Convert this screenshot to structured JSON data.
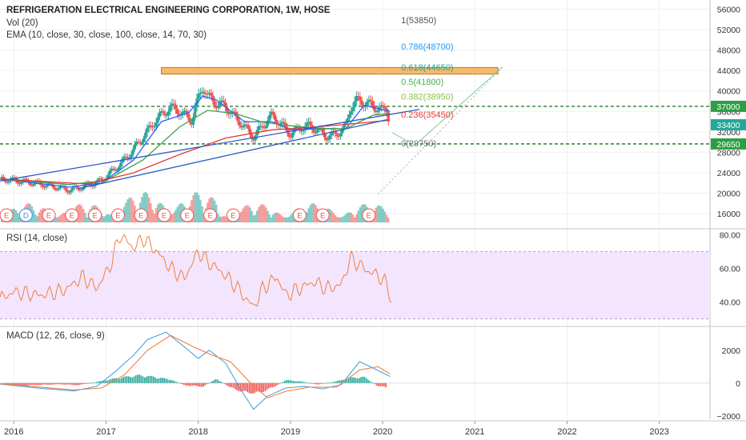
{
  "header": {
    "title": "REFRIGERATION ELECTRICAL ENGINEERING CORPORATION, 1W, HOSE",
    "vol": "Vol (20)",
    "ema": "EMA (10, close, 30, close, 100, close, 14, 70, 30)"
  },
  "rsi_label": "RSI (14, close)",
  "macd_label": "MACD (12, 26, close, 9)",
  "colors": {
    "up": "#26a69a",
    "down": "#ef5350",
    "ema10": "#2962ff",
    "ema30": "#43a047",
    "ema100": "#e53935",
    "trend": "#2e5cc4",
    "level": "#2e7d32",
    "rsi": "#f08040",
    "rsi_band": "#f3e5fd",
    "macd": "#4aa3df",
    "signal": "#f08040",
    "fib_box": "#f5b96a"
  },
  "chart_data": [
    {
      "type": "candlestick",
      "title": "REFRIGERATION ELECTRICAL ENGINEERING CORPORATION, 1W, HOSE",
      "x_ticks": [
        "2016",
        "2017",
        "2018",
        "2019",
        "2020",
        "2021",
        "2022",
        "2023"
      ],
      "y_ticks": [
        16000,
        20000,
        24000,
        28000,
        32000,
        36000,
        40000,
        44000,
        48000,
        52000,
        56000
      ],
      "ylim": [
        13200,
        57800
      ],
      "price_tags": [
        {
          "value": 37000,
          "label": "37000",
          "color": "#2e9e46"
        },
        {
          "value": 33400,
          "label": "33400",
          "color": "#26a69a"
        },
        {
          "value": 29650,
          "label": "29650",
          "color": "#2e9e46"
        }
      ],
      "horizontal_levels": [
        37000,
        29650
      ],
      "resistance_zone": {
        "from_date": 2017.6,
        "to_date": 2021.25,
        "low": 43300,
        "high": 44600
      },
      "price_path": [
        [
          2015.85,
          22800
        ],
        [
          2016.1,
          22300
        ],
        [
          2016.35,
          21600
        ],
        [
          2016.6,
          20600
        ],
        [
          2016.75,
          21200
        ],
        [
          2016.95,
          22500
        ],
        [
          2017.1,
          24800
        ],
        [
          2017.25,
          27500
        ],
        [
          2017.4,
          31000
        ],
        [
          2017.55,
          34500
        ],
        [
          2017.7,
          36800
        ],
        [
          2017.8,
          36000
        ],
        [
          2017.93,
          34200
        ],
        [
          2018.0,
          38500
        ],
        [
          2018.05,
          41000
        ],
        [
          2018.1,
          39000
        ],
        [
          2018.2,
          37500
        ],
        [
          2018.3,
          37000
        ],
        [
          2018.4,
          34800
        ],
        [
          2018.5,
          33000
        ],
        [
          2018.6,
          31000
        ],
        [
          2018.7,
          33200
        ],
        [
          2018.8,
          35200
        ],
        [
          2018.9,
          33500
        ],
        [
          2019.0,
          31500
        ],
        [
          2019.1,
          32800
        ],
        [
          2019.2,
          33200
        ],
        [
          2019.3,
          32200
        ],
        [
          2019.4,
          31000
        ],
        [
          2019.5,
          31600
        ],
        [
          2019.6,
          33000
        ],
        [
          2019.65,
          36800
        ],
        [
          2019.72,
          38200
        ],
        [
          2019.8,
          37800
        ],
        [
          2019.9,
          37000
        ],
        [
          2020.0,
          36200
        ],
        [
          2020.04,
          36800
        ],
        [
          2020.08,
          33400
        ]
      ],
      "ema": [
        {
          "name": "EMA 10",
          "points": [
            [
              2015.85,
              22800
            ],
            [
              2016.6,
              21200
            ],
            [
              2016.95,
              22000
            ],
            [
              2017.3,
              26500
            ],
            [
              2017.6,
              34000
            ],
            [
              2017.9,
              35800
            ],
            [
              2018.05,
              39000
            ],
            [
              2018.2,
              38200
            ],
            [
              2018.5,
              34000
            ],
            [
              2018.8,
              34000
            ],
            [
              2019.0,
              32400
            ],
            [
              2019.3,
              32600
            ],
            [
              2019.6,
              32600
            ],
            [
              2019.8,
              37200
            ],
            [
              2020.08,
              36000
            ]
          ]
        },
        {
          "name": "EMA 30",
          "points": [
            [
              2015.85,
              22800
            ],
            [
              2016.6,
              21700
            ],
            [
              2017.0,
              22500
            ],
            [
              2017.4,
              26500
            ],
            [
              2017.8,
              33000
            ],
            [
              2018.1,
              36200
            ],
            [
              2018.4,
              35600
            ],
            [
              2018.7,
              33900
            ],
            [
              2019.0,
              33200
            ],
            [
              2019.3,
              32700
            ],
            [
              2019.6,
              32600
            ],
            [
              2019.9,
              35300
            ],
            [
              2020.08,
              35600
            ]
          ]
        },
        {
          "name": "EMA 100",
          "points": [
            [
              2015.85,
              22800
            ],
            [
              2016.8,
              21800
            ],
            [
              2017.3,
              24000
            ],
            [
              2017.8,
              27600
            ],
            [
              2018.3,
              30800
            ],
            [
              2018.8,
              32400
            ],
            [
              2019.3,
              33000
            ],
            [
              2019.8,
              33800
            ],
            [
              2020.08,
              34300
            ]
          ]
        }
      ],
      "trendlines": [
        {
          "from": [
            2015.85,
            22400
          ],
          "to": [
            2020.4,
            36400
          ]
        },
        {
          "from": [
            2016.7,
            20900
          ],
          "to": [
            2020.05,
            34400
          ]
        }
      ],
      "projection_arrow": {
        "from": [
          2020.1,
          31900
        ],
        "to": [
          2020.35,
          29400
        ],
        "then_to": [
          2021.3,
          44700
        ]
      },
      "fib_levels": [
        {
          "ratio": "1",
          "value": 53850,
          "label": "1(53850)",
          "color": "#555555"
        },
        {
          "ratio": "0.786",
          "value": 48700,
          "label": "0.786(48700)",
          "color": "#2196f3"
        },
        {
          "ratio": "0.618",
          "value": 44650,
          "label": "0.618(44650)",
          "color": "#26a69a"
        },
        {
          "ratio": "0.5",
          "value": 41800,
          "label": "0.5(41800)",
          "color": "#4caf50"
        },
        {
          "ratio": "0.382",
          "value": 38950,
          "label": "0.382(38950)",
          "color": "#8bc34a"
        },
        {
          "ratio": "0.236",
          "value": 35450,
          "label": "0.236(35450)",
          "color": "#e53935"
        },
        {
          "ratio": "0",
          "value": 29750,
          "label": "0(29750)",
          "color": "#777777"
        }
      ],
      "earnings_markers": [
        {
          "date": 2015.92,
          "label": "E",
          "color": "#ef5350"
        },
        {
          "date": 2016.13,
          "label": "D",
          "color": "#2196f3"
        },
        {
          "date": 2016.38,
          "label": "E",
          "color": "#ef5350"
        },
        {
          "date": 2016.63,
          "label": "E",
          "color": "#ef5350"
        },
        {
          "date": 2016.88,
          "label": "E",
          "color": "#ef5350"
        },
        {
          "date": 2017.13,
          "label": "E",
          "color": "#ef5350"
        },
        {
          "date": 2017.38,
          "label": "E",
          "color": "#ef5350"
        },
        {
          "date": 2017.63,
          "label": "E",
          "color": "#ef5350"
        },
        {
          "date": 2017.88,
          "label": "E",
          "color": "#ef5350"
        },
        {
          "date": 2018.13,
          "label": "E",
          "color": "#ef5350"
        },
        {
          "date": 2018.38,
          "label": "E",
          "color": "#ef5350"
        },
        {
          "date": 2019.1,
          "label": "E",
          "color": "#ef5350"
        },
        {
          "date": 2019.35,
          "label": "E",
          "color": "#ef5350"
        },
        {
          "date": 2019.85,
          "label": "E",
          "color": "#ef5350"
        }
      ]
    },
    {
      "type": "line",
      "title": "RSI (14, close)",
      "y_ticks": [
        40,
        60,
        80
      ],
      "tick_labels": [
        "40.00",
        "60.00",
        "80.00"
      ],
      "ylim": [
        26,
        83
      ],
      "band": [
        30,
        70
      ],
      "series": [
        {
          "name": "RSI",
          "points": [
            [
              2015.85,
              42
            ],
            [
              2016.0,
              46
            ],
            [
              2016.3,
              44
            ],
            [
              2016.55,
              47
            ],
            [
              2016.75,
              55
            ],
            [
              2016.9,
              48
            ],
            [
              2017.05,
              62
            ],
            [
              2017.15,
              80
            ],
            [
              2017.3,
              72
            ],
            [
              2017.4,
              78
            ],
            [
              2017.55,
              70
            ],
            [
              2017.7,
              60
            ],
            [
              2017.85,
              54
            ],
            [
              2018.0,
              70
            ],
            [
              2018.1,
              64
            ],
            [
              2018.25,
              58
            ],
            [
              2018.4,
              50
            ],
            [
              2018.5,
              43
            ],
            [
              2018.6,
              37
            ],
            [
              2018.7,
              48
            ],
            [
              2018.85,
              55
            ],
            [
              2018.95,
              44
            ],
            [
              2019.1,
              48
            ],
            [
              2019.25,
              52
            ],
            [
              2019.4,
              48
            ],
            [
              2019.55,
              50
            ],
            [
              2019.65,
              66
            ],
            [
              2019.75,
              62
            ],
            [
              2019.85,
              58
            ],
            [
              2019.95,
              56
            ],
            [
              2020.05,
              50
            ],
            [
              2020.1,
              40
            ]
          ]
        }
      ]
    },
    {
      "type": "line",
      "title": "MACD (12, 26, close, 9)",
      "y_ticks": [
        -2000,
        0,
        2000
      ],
      "tick_labels": [
        "−2000",
        "0",
        "2000"
      ],
      "ylim": [
        -2200,
        3400
      ],
      "series": [
        {
          "name": "MACD",
          "points": [
            [
              2015.85,
              -60
            ],
            [
              2016.3,
              -320
            ],
            [
              2016.65,
              -480
            ],
            [
              2016.9,
              -200
            ],
            [
              2017.1,
              700
            ],
            [
              2017.3,
              1700
            ],
            [
              2017.45,
              2650
            ],
            [
              2017.65,
              3100
            ],
            [
              2017.85,
              2200
            ],
            [
              2018.0,
              1500
            ],
            [
              2018.12,
              2000
            ],
            [
              2018.3,
              1200
            ],
            [
              2018.45,
              -300
            ],
            [
              2018.6,
              -1600
            ],
            [
              2018.75,
              -800
            ],
            [
              2018.95,
              -300
            ],
            [
              2019.15,
              -200
            ],
            [
              2019.35,
              -350
            ],
            [
              2019.55,
              -100
            ],
            [
              2019.75,
              1300
            ],
            [
              2019.9,
              900
            ],
            [
              2020.08,
              400
            ]
          ]
        },
        {
          "name": "Signal",
          "points": [
            [
              2015.85,
              -40
            ],
            [
              2016.3,
              -250
            ],
            [
              2016.65,
              -420
            ],
            [
              2016.95,
              -300
            ],
            [
              2017.2,
              500
            ],
            [
              2017.45,
              2000
            ],
            [
              2017.7,
              2900
            ],
            [
              2017.95,
              2200
            ],
            [
              2018.15,
              1700
            ],
            [
              2018.35,
              1300
            ],
            [
              2018.55,
              100
            ],
            [
              2018.75,
              -900
            ],
            [
              2018.95,
              -500
            ],
            [
              2019.2,
              -250
            ],
            [
              2019.5,
              -250
            ],
            [
              2019.75,
              800
            ],
            [
              2019.95,
              1000
            ],
            [
              2020.08,
              550
            ]
          ]
        }
      ],
      "histogram": [
        [
          2015.9,
          -120
        ],
        [
          2016.1,
          -160
        ],
        [
          2016.3,
          -120
        ],
        [
          2016.5,
          -80
        ],
        [
          2016.7,
          -140
        ],
        [
          2016.9,
          80
        ],
        [
          2017.05,
          260
        ],
        [
          2017.2,
          400
        ],
        [
          2017.35,
          520
        ],
        [
          2017.5,
          430
        ],
        [
          2017.7,
          240
        ],
        [
          2017.85,
          -150
        ],
        [
          2018.05,
          -240
        ],
        [
          2018.2,
          280
        ],
        [
          2018.35,
          -300
        ],
        [
          2018.5,
          -620
        ],
        [
          2018.65,
          -680
        ],
        [
          2018.8,
          -320
        ],
        [
          2018.95,
          200
        ],
        [
          2019.1,
          120
        ],
        [
          2019.3,
          -100
        ],
        [
          2019.5,
          120
        ],
        [
          2019.65,
          350
        ],
        [
          2019.8,
          400
        ],
        [
          2019.95,
          -200
        ],
        [
          2020.05,
          -300
        ]
      ]
    }
  ]
}
